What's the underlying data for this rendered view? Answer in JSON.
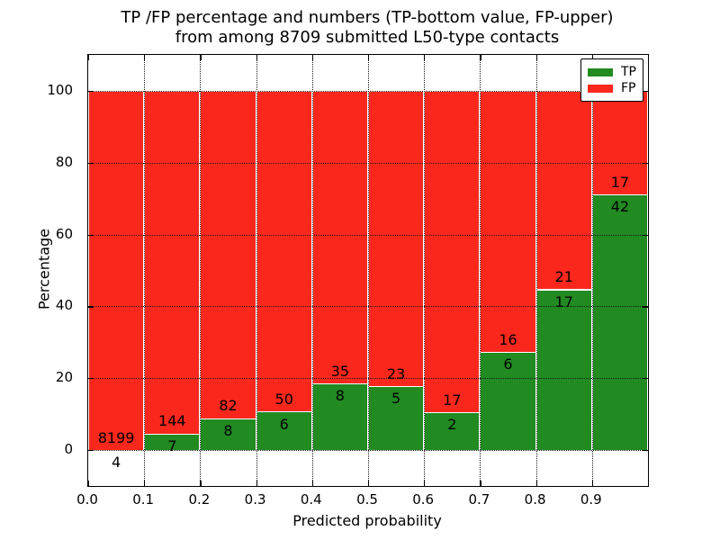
{
  "title": {
    "line1": "TP /FP percentage and numbers (TP-bottom value, FP-upper)",
    "line2": "from among 8709 submitted L50-type contacts"
  },
  "chart_data": {
    "type": "bar",
    "stacked": true,
    "title": "TP /FP percentage and numbers (TP-bottom value, FP-upper) from among 8709 submitted L50-type contacts",
    "xlabel": "Predicted probability",
    "ylabel": "Percentage",
    "xlim": [
      0.0,
      1.0
    ],
    "ylim": [
      -10,
      110
    ],
    "bin_width": 0.1,
    "xtick_labels": [
      "0.0",
      "0.1",
      "0.2",
      "0.3",
      "0.4",
      "0.5",
      "0.6",
      "0.7",
      "0.8",
      "0.9"
    ],
    "xtick_values": [
      0.0,
      0.1,
      0.2,
      0.3,
      0.4,
      0.5,
      0.6,
      0.7,
      0.8,
      0.9
    ],
    "ytick_labels": [
      "0",
      "20",
      "40",
      "60",
      "80",
      "100"
    ],
    "ytick_values": [
      0,
      20,
      40,
      60,
      80,
      100
    ],
    "categories": [
      "0.0-0.1",
      "0.1-0.2",
      "0.2-0.3",
      "0.3-0.4",
      "0.4-0.5",
      "0.5-0.6",
      "0.6-0.7",
      "0.7-0.8",
      "0.8-0.9",
      "0.9-1.0"
    ],
    "series": [
      {
        "name": "TP",
        "color": "#218a21",
        "counts": [
          4,
          7,
          8,
          6,
          8,
          5,
          2,
          6,
          17,
          42
        ]
      },
      {
        "name": "FP",
        "color": "#fa281c",
        "counts": [
          8199,
          144,
          82,
          50,
          35,
          23,
          17,
          16,
          21,
          17
        ]
      }
    ],
    "tp_percent": [
      0.05,
      4.64,
      8.89,
      10.71,
      18.6,
      17.86,
      10.53,
      27.27,
      44.74,
      71.19
    ],
    "total_contacts": 8709,
    "grid": {
      "style": "dotted",
      "color": "#000000",
      "axes": "both"
    },
    "legend": {
      "position": "upper right",
      "entries": [
        {
          "label": "TP",
          "color": "#218a21"
        },
        {
          "label": "FP",
          "color": "#fa281c"
        }
      ]
    }
  }
}
